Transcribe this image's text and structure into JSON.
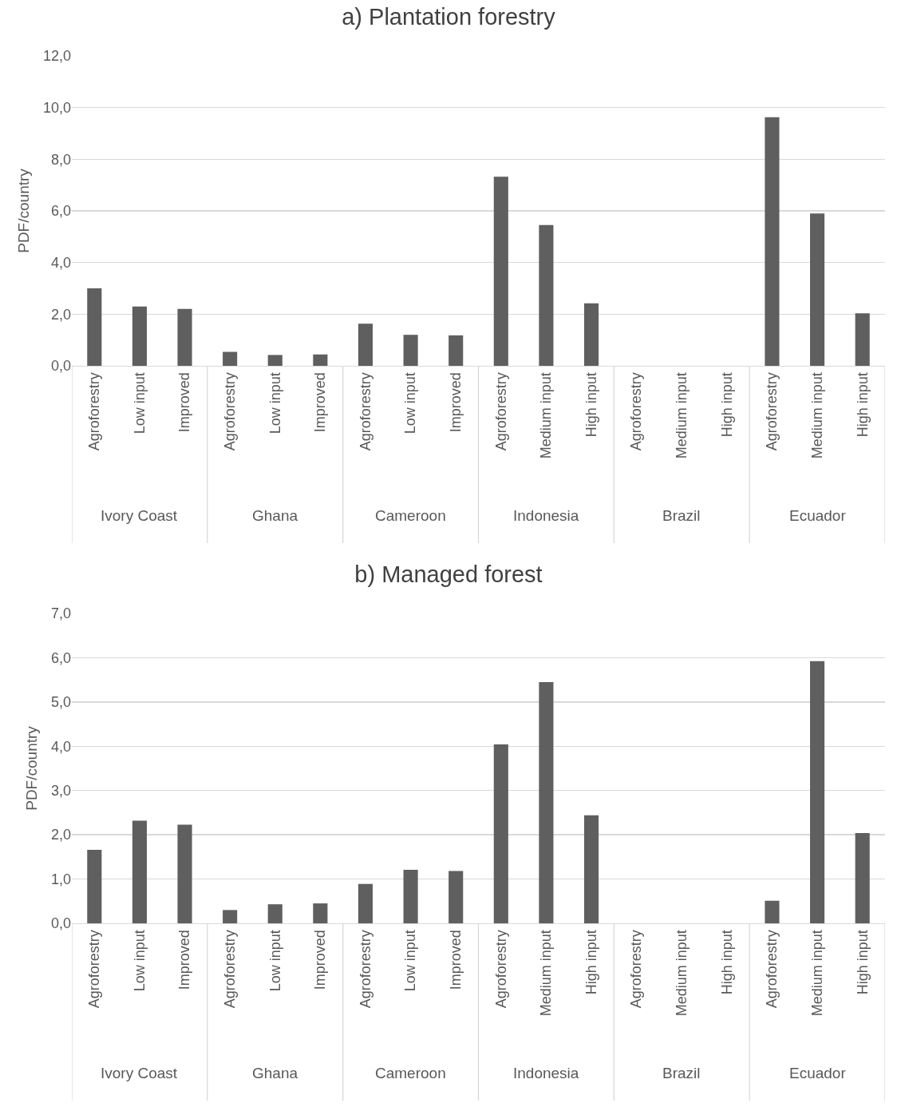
{
  "chart_data": [
    {
      "type": "bar",
      "title": "a) Plantation forestry",
      "ylabel": "PDF/country",
      "categories": [
        "Agroforestry",
        "Low input",
        "Improved",
        "Agroforestry",
        "Low input",
        "Improved",
        "Agroforestry",
        "Low input",
        "Improved",
        "Agroforestry",
        "Medium input",
        "High input",
        "Agroforestry",
        "Medium input",
        "High input",
        "Agroforestry",
        "Medium input",
        "High input"
      ],
      "values": [
        3.0,
        2.3,
        2.2,
        0.54,
        0.42,
        0.44,
        1.63,
        1.2,
        1.18,
        7.32,
        5.45,
        2.42,
        0,
        0,
        0,
        9.63,
        5.9,
        2.03
      ],
      "color": "#5f5f5f",
      "ylim": [
        0,
        12
      ],
      "yticks": [
        {
          "value": 0,
          "label": "0,0"
        },
        {
          "value": 2,
          "label": "2,0"
        },
        {
          "value": 4,
          "label": "4,0"
        },
        {
          "value": 6,
          "label": "6,0"
        },
        {
          "value": 8,
          "label": "8,0"
        },
        {
          "value": 10,
          "label": "10,0"
        },
        {
          "value": 12,
          "label": "12,0"
        }
      ],
      "grid": "y",
      "annotations": [
        "Ivory Coast",
        "Ghana",
        "Cameroon",
        "Indonesia",
        "Brazil",
        "Ecuador"
      ]
    },
    {
      "type": "bar",
      "title": "b) Managed forest",
      "ylabel": "PDF/country",
      "categories": [
        "Agroforestry",
        "Low input",
        "Improved",
        "Agroforestry",
        "Low input",
        "Improved",
        "Agroforestry",
        "Low input",
        "Improved",
        "Agroforestry",
        "Medium input",
        "High input",
        "Agroforestry",
        "Medium input",
        "High input",
        "Agroforestry",
        "Medium input",
        "High input"
      ],
      "values": [
        1.66,
        2.32,
        2.23,
        0.3,
        0.43,
        0.45,
        0.89,
        1.21,
        1.18,
        4.04,
        5.45,
        2.44,
        0,
        0,
        0,
        0.51,
        5.92,
        2.04
      ],
      "color": "#5f5f5f",
      "ylim": [
        0,
        7
      ],
      "yticks": [
        {
          "value": 0,
          "label": "0,0"
        },
        {
          "value": 1,
          "label": "1,0"
        },
        {
          "value": 2,
          "label": "2,0"
        },
        {
          "value": 3,
          "label": "3,0"
        },
        {
          "value": 4,
          "label": "4,0"
        },
        {
          "value": 5,
          "label": "5,0"
        },
        {
          "value": 6,
          "label": "6,0"
        },
        {
          "value": 7,
          "label": "7,0"
        }
      ],
      "grid": "y",
      "annotations": [
        "Ivory Coast",
        "Ghana",
        "Cameroon",
        "Indonesia",
        "Brazil",
        "Ecuador"
      ]
    }
  ]
}
